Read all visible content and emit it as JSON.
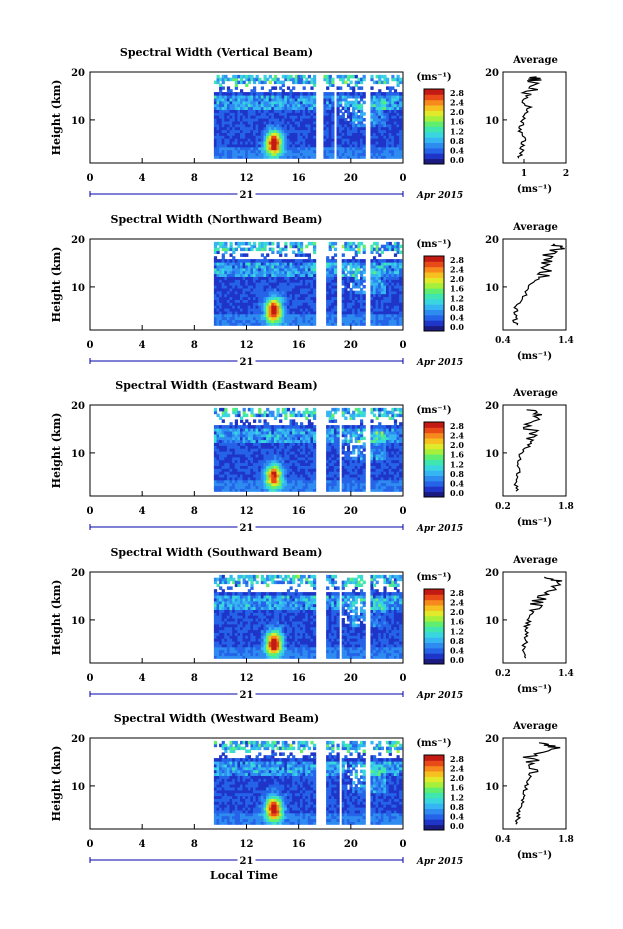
{
  "colors": {
    "axis": "#000000",
    "accent": "#0000aa",
    "background": "#ffffff"
  },
  "shared": {
    "x_ticks": [
      "0",
      "4",
      "8",
      "12",
      "16",
      "20",
      "0"
    ],
    "day_label": "21",
    "date_label": "Apr 2015",
    "xlabel": "Local Time",
    "ylabel": "Height (km)",
    "y_ticks": [
      "20",
      "10"
    ],
    "colorbar_unit": "(ms⁻¹)",
    "colorbar_ticks": [
      "2.8",
      "2.4",
      "2.0",
      "1.6",
      "1.2",
      "0.8",
      "0.4",
      "0.0"
    ],
    "average_title": "Average",
    "average_unit": "(ms⁻¹)"
  },
  "chart_data": [
    {
      "type": "heatmap",
      "title": "Spectral Width (Vertical Beam)",
      "xlim": [
        0,
        24
      ],
      "ylim": [
        1,
        20
      ],
      "zlim": [
        0,
        3.0
      ],
      "data_gaps_hours": [
        [
          17.2,
          17.8
        ],
        [
          18.6,
          18.8
        ],
        [
          20.9,
          21.3
        ]
      ],
      "data_start_hour": 9.5,
      "peak": {
        "hour": 14,
        "height_km": 5,
        "value": 2.8
      },
      "profile": {
        "type": "line",
        "xticks": [
          "1",
          "2"
        ],
        "xlim": [
          0.5,
          2
        ],
        "heights": [
          2,
          4,
          6,
          8,
          10,
          12,
          14,
          16,
          18,
          19
        ],
        "values": [
          0.9,
          0.95,
          1.0,
          0.9,
          1.0,
          1.05,
          1.1,
          1.15,
          1.2,
          1.3
        ]
      }
    },
    {
      "type": "heatmap",
      "title": "Spectral Width (Northward Beam)",
      "xlim": [
        0,
        24
      ],
      "ylim": [
        1,
        20
      ],
      "zlim": [
        0,
        3.0
      ],
      "data_gaps_hours": [
        [
          17.2,
          17.9
        ],
        [
          18.8,
          19.2
        ],
        [
          21.0,
          21.3
        ]
      ],
      "data_start_hour": 9.5,
      "peak": {
        "hour": 14,
        "height_km": 5,
        "value": 2.8
      },
      "profile": {
        "type": "line",
        "xticks": [
          "0.4",
          "1.4"
        ],
        "xlim": [
          0.4,
          1.4
        ],
        "heights": [
          2,
          4,
          6,
          8,
          10,
          12,
          14,
          16,
          18,
          19
        ],
        "values": [
          0.6,
          0.58,
          0.62,
          0.75,
          0.8,
          1.0,
          1.1,
          1.05,
          1.3,
          1.2
        ]
      }
    },
    {
      "type": "heatmap",
      "title": "Spectral Width (Eastward Beam)",
      "xlim": [
        0,
        24
      ],
      "ylim": [
        1,
        20
      ],
      "zlim": [
        0,
        3.0
      ],
      "data_gaps_hours": [
        [
          17.2,
          17.9
        ],
        [
          18.9,
          19.1
        ],
        [
          21.0,
          21.3
        ]
      ],
      "data_start_hour": 9.5,
      "peak": {
        "hour": 14,
        "height_km": 5,
        "value": 2.5
      },
      "profile": {
        "type": "line",
        "xticks": [
          "0.2",
          "1.8"
        ],
        "xlim": [
          0.2,
          1.8
        ],
        "heights": [
          2,
          4,
          6,
          8,
          10,
          12,
          14,
          16,
          18,
          19
        ],
        "values": [
          0.55,
          0.5,
          0.6,
          0.6,
          0.65,
          0.9,
          1.0,
          0.7,
          1.2,
          0.8
        ]
      }
    },
    {
      "type": "heatmap",
      "title": "Spectral Width (Southward Beam)",
      "xlim": [
        0,
        24
      ],
      "ylim": [
        1,
        20
      ],
      "zlim": [
        0,
        3.0
      ],
      "data_gaps_hours": [
        [
          17.2,
          17.9
        ],
        [
          18.9,
          19.1
        ],
        [
          21.0,
          21.3
        ]
      ],
      "data_start_hour": 9.5,
      "peak": {
        "hour": 14,
        "height_km": 5,
        "value": 2.8
      },
      "profile": {
        "type": "line",
        "xticks": [
          "0.2",
          "1.4"
        ],
        "xlim": [
          0.2,
          1.4
        ],
        "heights": [
          2,
          4,
          6,
          8,
          10,
          12,
          14,
          16,
          18,
          19
        ],
        "values": [
          0.6,
          0.58,
          0.65,
          0.62,
          0.7,
          0.75,
          0.85,
          1.1,
          1.35,
          1.0
        ]
      }
    },
    {
      "type": "heatmap",
      "title": "Spectral Width (Westward Beam)",
      "xlim": [
        0,
        24
      ],
      "ylim": [
        1,
        20
      ],
      "zlim": [
        0,
        3.0
      ],
      "data_gaps_hours": [
        [
          17.2,
          17.9
        ],
        [
          18.9,
          19.1
        ],
        [
          21.0,
          21.3
        ]
      ],
      "data_start_hour": 9.5,
      "peak": {
        "hour": 14,
        "height_km": 5,
        "value": 2.8
      },
      "profile": {
        "type": "line",
        "xticks": [
          "0.4",
          "1.8"
        ],
        "xlim": [
          0.4,
          1.8
        ],
        "heights": [
          2,
          4,
          6,
          8,
          10,
          12,
          14,
          16,
          18,
          19
        ],
        "values": [
          0.7,
          0.75,
          0.8,
          0.85,
          0.9,
          1.0,
          1.1,
          1.0,
          1.6,
          1.2
        ]
      }
    }
  ]
}
